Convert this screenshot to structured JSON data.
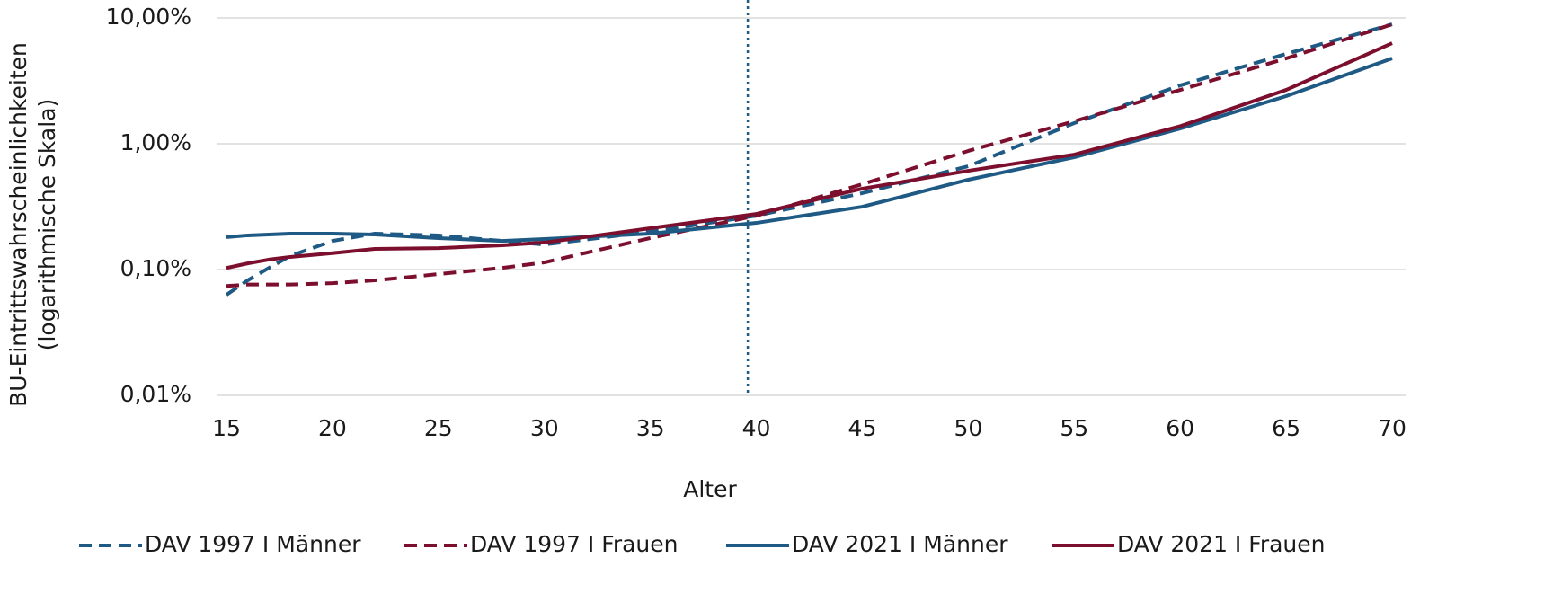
{
  "chart_data": {
    "type": "line",
    "ylabel": [
      "BU-Eintrittswahrscheinlichkeiten",
      "(logarithmische Skala)"
    ],
    "xlabel": "Alter",
    "x": [
      15,
      16,
      17,
      18,
      20,
      22,
      25,
      28,
      30,
      35,
      40,
      45,
      50,
      55,
      60,
      65,
      70
    ],
    "series": [
      {
        "name": "DAV 1997 I Männer",
        "color": "#1f5a85",
        "dashed": true,
        "values": [
          0.063,
          0.082,
          0.103,
          0.128,
          0.169,
          0.193,
          0.187,
          0.169,
          0.158,
          0.2,
          0.268,
          0.405,
          0.663,
          1.46,
          2.91,
          5.18,
          8.9
        ]
      },
      {
        "name": "DAV 1997 I Frauen",
        "color": "#7d0f2e",
        "dashed": true,
        "values": [
          0.074,
          0.076,
          0.076,
          0.076,
          0.078,
          0.082,
          0.092,
          0.103,
          0.114,
          0.178,
          0.268,
          0.477,
          0.877,
          1.51,
          2.68,
          4.77,
          8.9
        ]
      },
      {
        "name": "DAV 2021 I Männer",
        "color": "#1f5a85",
        "dashed": false,
        "values": [
          0.181,
          0.187,
          0.19,
          0.193,
          0.193,
          0.19,
          0.178,
          0.169,
          0.175,
          0.193,
          0.235,
          0.316,
          0.518,
          0.781,
          1.32,
          2.39,
          4.77
        ]
      },
      {
        "name": "DAV 2021 I Frauen",
        "color": "#7d0f2e",
        "dashed": false,
        "values": [
          0.103,
          0.112,
          0.12,
          0.126,
          0.135,
          0.146,
          0.148,
          0.156,
          0.164,
          0.213,
          0.277,
          0.44,
          0.61,
          0.82,
          1.38,
          2.68,
          6.3
        ]
      }
    ],
    "xlim": [
      15,
      70
    ],
    "xticks": [
      15,
      20,
      25,
      30,
      35,
      40,
      45,
      50,
      55,
      60,
      65,
      70
    ],
    "ylim": [
      0.01,
      10
    ],
    "log_y": true,
    "yticks": [
      {
        "value": 0.01,
        "label": "0,01%"
      },
      {
        "value": 0.1,
        "label": "0,10%"
      },
      {
        "value": 1,
        "label": "1,00%"
      },
      {
        "value": 10,
        "label": "10,00%"
      }
    ],
    "grid": true,
    "vline": 39.6,
    "vline_color": "#1f5a85",
    "legend": "bottom"
  }
}
